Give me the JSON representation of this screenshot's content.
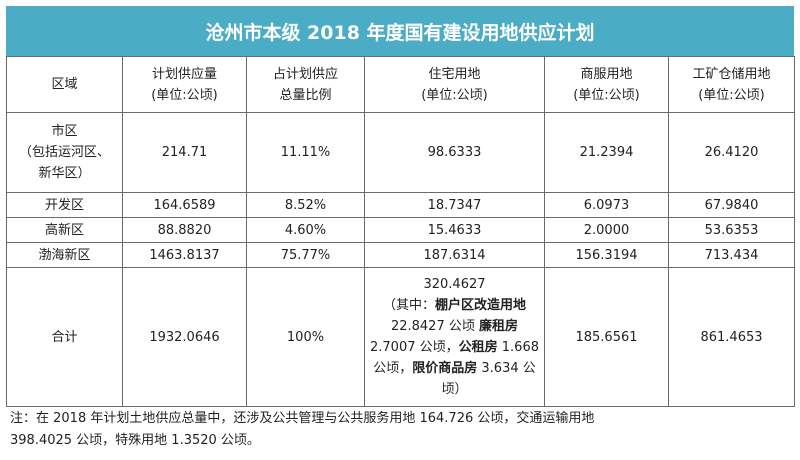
{
  "title": "沧州市本级 2018 年度国有建设用地供应计划",
  "headers": [
    {
      "line1": "区域",
      "line2": ""
    },
    {
      "line1": "计划供应量",
      "line2": "(单位:公顷)"
    },
    {
      "line1": "占计划供应",
      "line2": "总量比例"
    },
    {
      "line1": "住宅用地",
      "line2": "(单位:公顷)"
    },
    {
      "line1": "商服用地",
      "line2": "(单位:公顷)"
    },
    {
      "line1": "工矿仓储用地",
      "line2": "(单位:公顷)"
    }
  ],
  "rows": [
    {
      "region_lines": [
        "市区",
        "（包括运河区、",
        "新华区）"
      ],
      "total": "214.71",
      "ratio": "11.11%",
      "residential": "98.6333",
      "commercial": "21.2394",
      "industrial": "26.4120"
    },
    {
      "region_lines": [
        "开发区"
      ],
      "total": "164.6589",
      "ratio": "8.52%",
      "residential": "18.7347",
      "commercial": "6.0973",
      "industrial": "67.9840"
    },
    {
      "region_lines": [
        "高新区"
      ],
      "total": "88.8820",
      "ratio": "4.60%",
      "residential": "15.4633",
      "commercial": "2.0000",
      "industrial": "53.6353"
    },
    {
      "region_lines": [
        "渤海新区"
      ],
      "total": "1463.8137",
      "ratio": "75.77%",
      "residential": "187.6314",
      "commercial": "156.3194",
      "industrial": "713.434"
    }
  ],
  "total_row": {
    "region": "合计",
    "total": "1932.0646",
    "ratio": "100%",
    "residential_value": "320.4627",
    "residential_detail": [
      {
        "text": "（其中：",
        "bold": false
      },
      {
        "text": "棚户区改造用地",
        "bold": true
      },
      {
        "text": "22.8427 公顷 ",
        "bold": false
      },
      {
        "text": "廉租房",
        "bold": true
      },
      {
        "text": " 2.7007 公顷，",
        "bold": false
      },
      {
        "text": "公租房",
        "bold": true
      },
      {
        "text": " 1.668 公顷，",
        "bold": false
      },
      {
        "text": "限价商品房",
        "bold": true
      },
      {
        "text": " 3.634 公顷）",
        "bold": false
      }
    ],
    "commercial": "185.6561",
    "industrial": "861.4653"
  },
  "note_lines": [
    "注：在 2018 年计划土地供应总量中，还涉及公共管理与公共服务用地 164.726 公顷，交通运输用地",
    "398.4025 公顷，特殊用地 1.3520 公顷。"
  ]
}
